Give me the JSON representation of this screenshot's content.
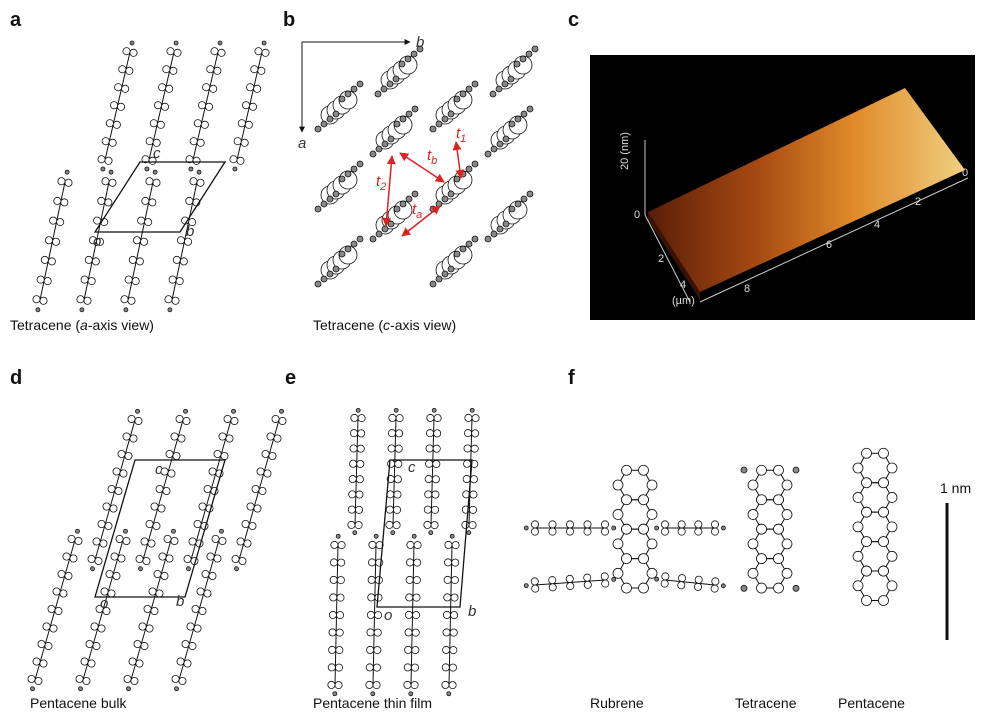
{
  "panels": [
    {
      "label": "a",
      "caption": [
        "Tetracene (",
        "a",
        "-axis view)"
      ],
      "cell_labels": [
        "c",
        "o",
        "b"
      ]
    },
    {
      "label": "b",
      "caption": [
        "Tetracene (",
        "c",
        "-axis view)"
      ],
      "axis_labels": [
        "b",
        "a"
      ],
      "transfer_labels": [
        {
          "t": "t",
          "sub": "1"
        },
        {
          "t": "t",
          "sub": "b"
        },
        {
          "t": "t",
          "sub": "2"
        },
        {
          "t": "t",
          "sub": "a"
        }
      ]
    },
    {
      "label": "c",
      "z_label": "20 (nm)",
      "z_ticks": [
        0
      ],
      "y_ticks": [
        2,
        4
      ],
      "y_label": "(µm)",
      "x_ticks": [
        8,
        6,
        4,
        2,
        0
      ]
    },
    {
      "label": "d",
      "caption": [
        "Pentacene bulk"
      ],
      "cell_labels": [
        "c",
        "o",
        "b"
      ]
    },
    {
      "label": "e",
      "caption": [
        "Pentacene thin film"
      ],
      "cell_labels": [
        "c",
        "o",
        "b"
      ]
    },
    {
      "label": "f",
      "molecules": [
        "Rubrene",
        "Tetracene",
        "Pentacene"
      ],
      "scale_label": "1 nm"
    }
  ]
}
